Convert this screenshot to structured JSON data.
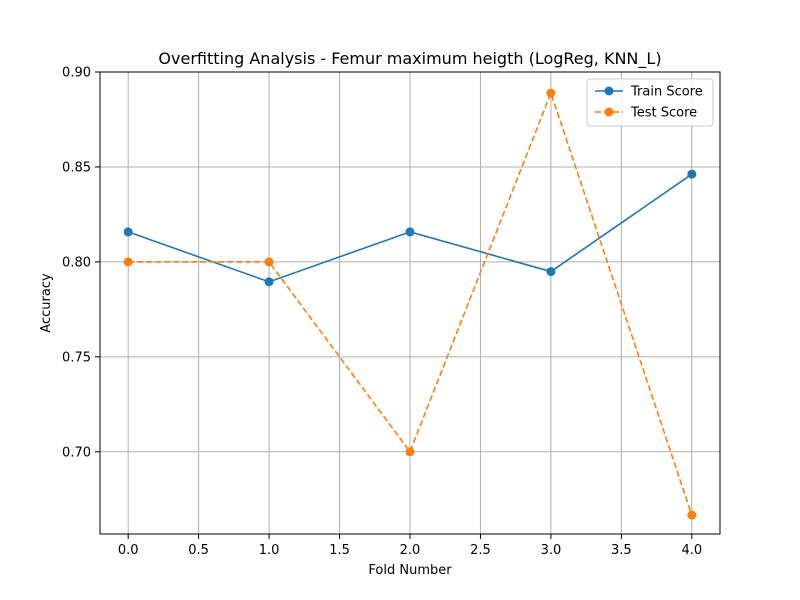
{
  "chart_data": {
    "type": "line",
    "title": "Overfitting Analysis - Femur maximum heigth (LogReg, KNN_L)",
    "xlabel": "Fold Number",
    "ylabel": "Accuracy",
    "x": [
      0,
      1,
      2,
      3,
      4
    ],
    "xlim": [
      -0.2,
      4.2
    ],
    "ylim": [
      0.6567,
      0.9
    ],
    "xticks": [
      "0.0",
      "0.5",
      "1.0",
      "1.5",
      "2.0",
      "2.5",
      "3.0",
      "3.5",
      "4.0"
    ],
    "yticks": [
      "0.70",
      "0.75",
      "0.80",
      "0.85",
      "0.90"
    ],
    "grid": true,
    "legend_position": "top-right",
    "series": [
      {
        "name": "Train Score",
        "values": [
          0.8158,
          0.7895,
          0.8158,
          0.7949,
          0.8462
        ],
        "color": "#1f77b4",
        "line_style": "solid",
        "marker": "circle"
      },
      {
        "name": "Test Score",
        "values": [
          0.8,
          0.8,
          0.7,
          0.8889,
          0.6667
        ],
        "color": "#ff7f0e",
        "line_style": "dashed",
        "marker": "circle"
      }
    ]
  }
}
